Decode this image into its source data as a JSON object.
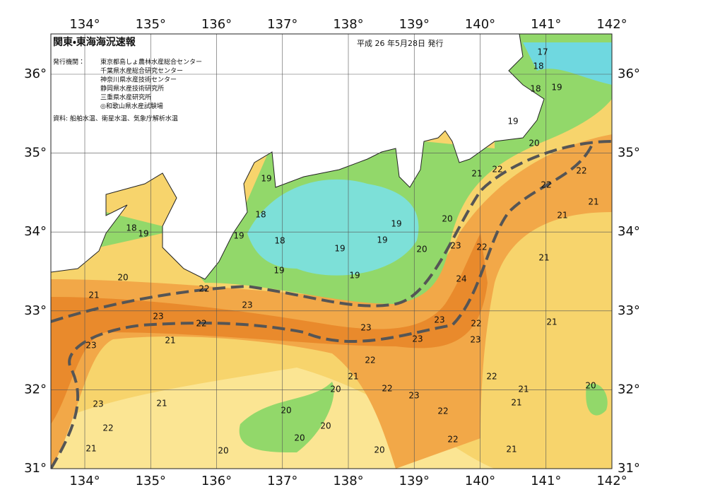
{
  "header": {
    "title": "関東・東海海況速報",
    "date": "平成 26 年5月28日 発行"
  },
  "issuers": {
    "label": "発行機関：",
    "items": [
      "東京都島しょ農林水産総合センター",
      "千葉県水産総合研究センター",
      "神奈川県水産技術センター",
      "静岡県水産技術研究所",
      "三重県水産研究所",
      "◎和歌山県水産試験場"
    ]
  },
  "source": "資料: 船舶水温、衛星水温、気象庁解析水温",
  "lon_labels": [
    "134°",
    "135°",
    "136°",
    "137°",
    "138°",
    "139°",
    "140°",
    "141°",
    "142°"
  ],
  "lat_labels": [
    "36°",
    "35°",
    "34°",
    "33°",
    "32°",
    "31°"
  ],
  "contour_labels": [
    "17",
    "18",
    "18",
    "19",
    "19",
    "20",
    "21",
    "22",
    "22",
    "22",
    "21",
    "21",
    "19",
    "18",
    "18",
    "19",
    "19",
    "18",
    "19",
    "19",
    "19",
    "20",
    "20",
    "23",
    "22",
    "21",
    "19",
    "19",
    "24",
    "20",
    "21",
    "22",
    "23",
    "23",
    "22",
    "23",
    "23",
    "22",
    "21",
    "23",
    "21",
    "23",
    "23",
    "22",
    "21",
    "22",
    "20",
    "22",
    "23",
    "21",
    "20",
    "23",
    "21",
    "21",
    "20",
    "22",
    "22",
    "20",
    "20",
    "22",
    "21",
    "20",
    "20",
    "21"
  ]
}
